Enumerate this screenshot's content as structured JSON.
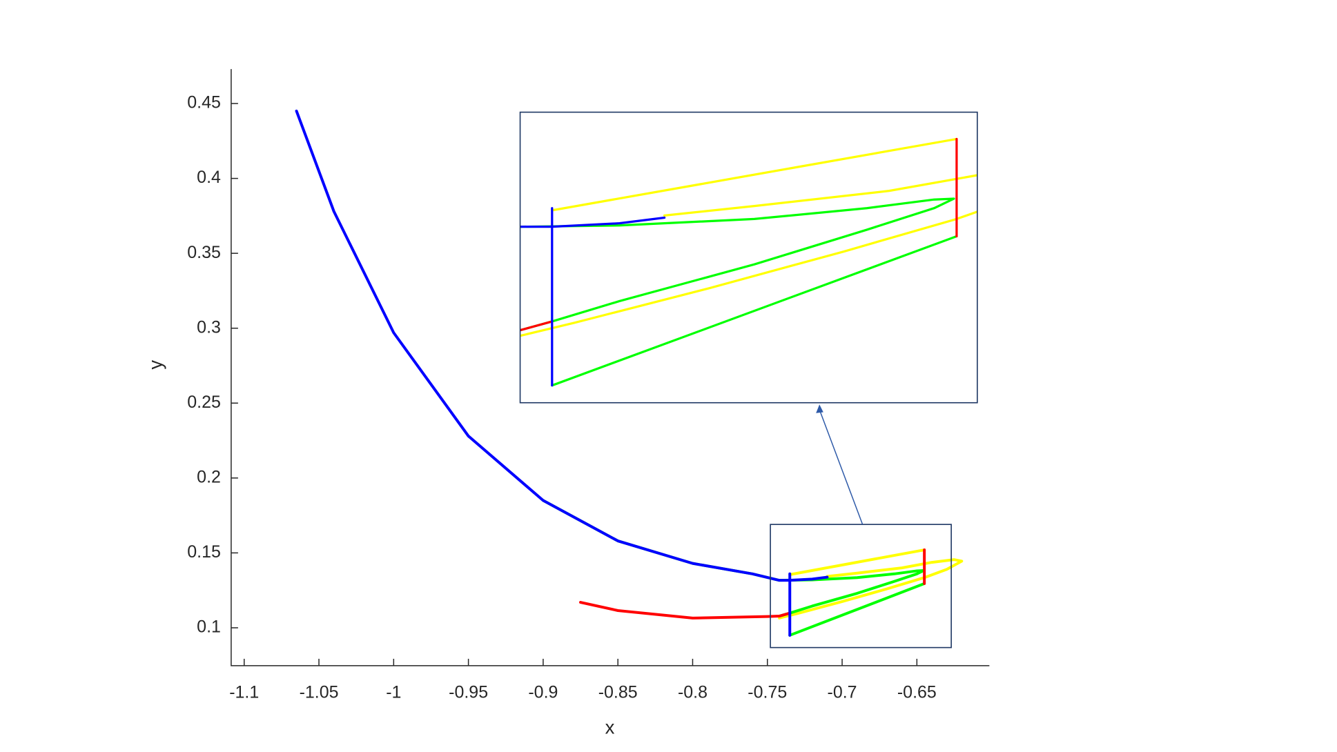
{
  "chart_data": {
    "type": "line",
    "x_label": "x",
    "y_label": "y",
    "xlim": [
      -1.1087,
      -0.6015
    ],
    "ylim": [
      0.0747,
      0.473
    ],
    "xticks": [
      -1.1,
      -1.05,
      -1,
      -0.95,
      -0.9,
      -0.85,
      -0.8,
      -0.75,
      -0.7,
      -0.65
    ],
    "yticks": [
      0.1,
      0.15,
      0.2,
      0.25,
      0.3,
      0.35,
      0.4,
      0.45
    ],
    "grid": false,
    "series": [
      {
        "color": "#ffff00",
        "x": [
          -0.71,
          -0.69,
          -0.66,
          -0.64,
          -0.625,
          -0.62,
          -0.63,
          -0.645,
          -0.67,
          -0.7,
          -0.73,
          -0.742
        ],
        "values": [
          0.1343,
          0.1365,
          0.14,
          0.1437,
          0.1455,
          0.1445,
          0.139,
          0.1335,
          0.126,
          0.1175,
          0.1095,
          0.1065
        ]
      },
      {
        "color": "#ffff00",
        "x": [
          -0.735,
          -0.645
        ],
        "values": [
          0.1355,
          0.152
        ]
      },
      {
        "color": "#00ff00",
        "x": [
          -0.9,
          -0.85,
          -0.8,
          -0.76,
          -0.742,
          -0.72,
          -0.69,
          -0.665,
          -0.65,
          -0.6456,
          -0.65,
          -0.665,
          -0.69,
          -0.72,
          -0.735,
          -0.742
        ],
        "values": [
          0.185,
          0.158,
          0.143,
          0.136,
          0.1317,
          0.132,
          0.1335,
          0.136,
          0.138,
          0.1382,
          0.136,
          0.131,
          0.123,
          0.1145,
          0.1098,
          0.1078
        ]
      },
      {
        "color": "#00ff00",
        "x": [
          -0.735,
          -0.645
        ],
        "values": [
          0.095,
          0.1295
        ]
      },
      {
        "color": "#ff0000",
        "x": [
          -0.875,
          -0.85,
          -0.8,
          -0.75,
          -0.742,
          -0.735
        ],
        "values": [
          0.117,
          0.1115,
          0.1065,
          0.1075,
          0.1078,
          0.1098
        ]
      },
      {
        "color": "#ff0000",
        "x": [
          -0.645,
          -0.645
        ],
        "values": [
          0.1295,
          0.152
        ]
      },
      {
        "color": "#0000ff",
        "x": [
          -1.065,
          -1.04,
          -1.0,
          -0.95,
          -0.9,
          -0.85,
          -0.8,
          -0.76,
          -0.742,
          -0.735,
          -0.72,
          -0.71
        ],
        "values": [
          0.445,
          0.378,
          0.297,
          0.228,
          0.185,
          0.158,
          0.143,
          0.136,
          0.1317,
          0.1317,
          0.1325,
          0.1338
        ]
      },
      {
        "color": "#0000ff",
        "x": [
          -0.735,
          -0.735
        ],
        "values": [
          0.095,
          0.136
        ]
      }
    ],
    "zoom_box": {
      "xlim": [
        -0.748,
        -0.627
      ],
      "ylim": [
        0.0868,
        0.169
      ]
    },
    "inset": {
      "xlim": [
        -0.7421,
        -0.6404
      ],
      "ylim": [
        0.091,
        0.1582
      ]
    }
  }
}
